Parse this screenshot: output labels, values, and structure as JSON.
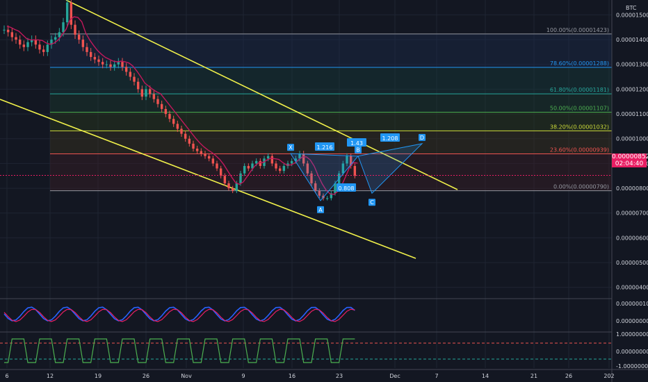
{
  "symbol": "BTC",
  "price_tag": {
    "price": "0.00000852",
    "countdown": "02:04:40"
  },
  "colors": {
    "bg": "#131722",
    "grid": "#1f2533",
    "up": "#26a69a",
    "down": "#ef5350",
    "channel": "#f0f04a",
    "ma_red": "#c2185b",
    "pattern": "#2196f3"
  },
  "chart_data": {
    "type": "candlestick",
    "x_ticks": [
      "6",
      "12",
      "19",
      "26",
      "Nov",
      "9",
      "16",
      "23",
      "Dec",
      "7",
      "14",
      "21",
      "26",
      "202"
    ],
    "y_ticks": [
      "0.00001500",
      "0.00001400",
      "0.00001300",
      "0.00001200",
      "0.00001100",
      "0.00001000",
      "0.00000900",
      "0.00000800",
      "0.00000700",
      "0.00000600",
      "0.00000500",
      "0.00000400"
    ],
    "ylim": [
      3.6e-06,
      1.56e-05
    ],
    "fib_levels": [
      {
        "label": "100.00%(0.00001423)",
        "value": 1.423e-05,
        "color": "#9598a1"
      },
      {
        "label": "78.60%(0.00001288)",
        "value": 1.288e-05,
        "color": "#2196f3"
      },
      {
        "label": "61.80%(0.00001181)",
        "value": 1.181e-05,
        "color": "#26a69a"
      },
      {
        "label": "50.00%(0.00001107)",
        "value": 1.107e-05,
        "color": "#4caf50"
      },
      {
        "label": "38.20%(0.00001032)",
        "value": 1.032e-05,
        "color": "#cddc39"
      },
      {
        "label": "23.60%(0.00000939)",
        "value": 9.39e-06,
        "color": "#ef5350"
      },
      {
        "label": "0.00%(0.00000790)",
        "value": 7.9e-06,
        "color": "#9598a1"
      }
    ],
    "pattern_points": [
      {
        "label": "X",
        "value": 9.4e-06
      },
      {
        "label": "A",
        "value": 7.5e-06
      },
      {
        "label": "B",
        "value": 9.3e-06
      },
      {
        "label": "C",
        "value": 7.8e-06
      },
      {
        "label": "D",
        "value": 9.8e-06
      }
    ],
    "pattern_ratios": [
      "1.216",
      "1.43",
      "0.808",
      "1.208"
    ],
    "osc1_ticks": [
      "0.00000010",
      "0.00000000"
    ],
    "osc2_ticks": [
      "1.00000000",
      "0.00000000",
      "-1.00000000"
    ],
    "closes": [
      1.44,
      1.43,
      1.41,
      1.4,
      1.38,
      1.37,
      1.39,
      1.4,
      1.38,
      1.36,
      1.35,
      1.38,
      1.4,
      1.41,
      1.43,
      1.47,
      1.55,
      1.46,
      1.42,
      1.4,
      1.37,
      1.35,
      1.33,
      1.32,
      1.31,
      1.3,
      1.3,
      1.29,
      1.3,
      1.31,
      1.29,
      1.27,
      1.25,
      1.23,
      1.2,
      1.17,
      1.2,
      1.18,
      1.16,
      1.14,
      1.12,
      1.1,
      1.08,
      1.06,
      1.04,
      1.02,
      1.0,
      0.98,
      0.96,
      0.95,
      0.94,
      0.93,
      0.92,
      0.9,
      0.88,
      0.85,
      0.82,
      0.8,
      0.79,
      0.82,
      0.86,
      0.89,
      0.88,
      0.9,
      0.91,
      0.89,
      0.92,
      0.93,
      0.9,
      0.88,
      0.87,
      0.89,
      0.9,
      0.91,
      0.92,
      0.94,
      0.9,
      0.86,
      0.82,
      0.79,
      0.77,
      0.76,
      0.76,
      0.78,
      0.82,
      0.86,
      0.9,
      0.93,
      0.89,
      0.85
    ]
  }
}
